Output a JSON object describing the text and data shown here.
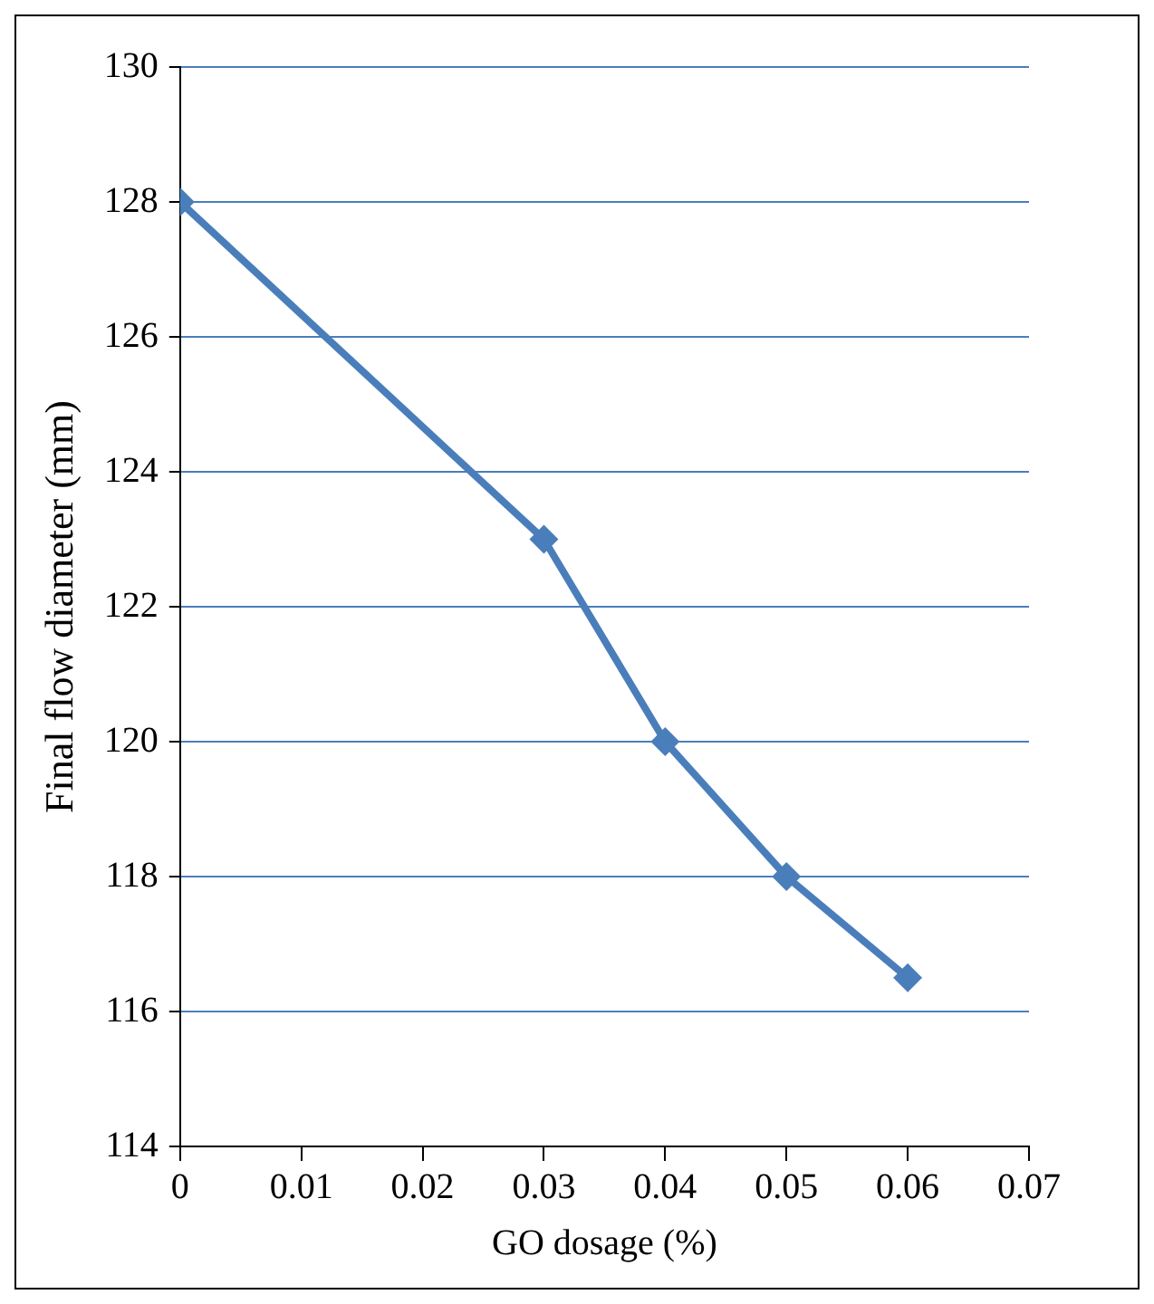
{
  "chart_data": {
    "type": "line",
    "xlabel": "GO dosage (%)",
    "ylabel": "Final flow diameter (mm)",
    "x": [
      0,
      0.03,
      0.04,
      0.05,
      0.06
    ],
    "series": [
      {
        "color": "#4a7ebb",
        "values": [
          128,
          123,
          120,
          118,
          116.5
        ]
      }
    ],
    "xlim": [
      0,
      0.07
    ],
    "xticks": [
      0,
      0.01,
      0.02,
      0.03,
      0.04,
      0.05,
      0.06,
      0.07
    ],
    "ylim": [
      114,
      130
    ],
    "yticks": [
      114,
      116,
      118,
      120,
      122,
      124,
      126,
      128,
      130
    ],
    "grid": "y",
    "legend": false,
    "marker": "diamond",
    "line_style": "solid"
  }
}
